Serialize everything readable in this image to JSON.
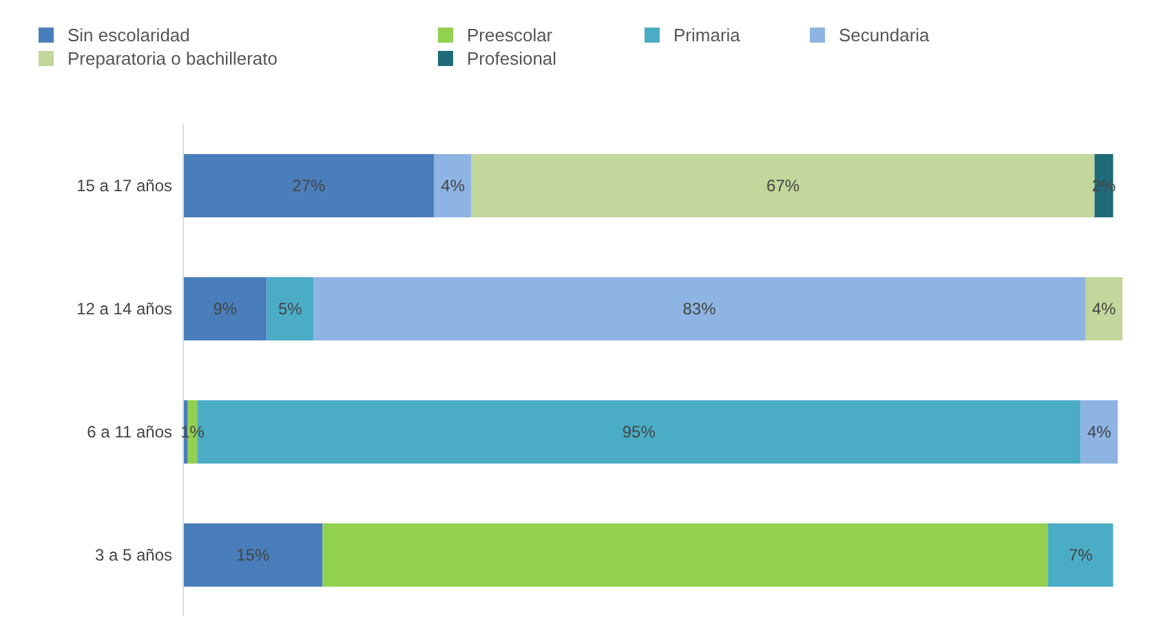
{
  "chart_data": {
    "type": "bar",
    "orientation": "horizontal",
    "stacked": true,
    "legend": "top",
    "grid": false,
    "categories": [
      "15 a 17 años",
      "12 a 14 años",
      "6 a 11 años",
      "3 a 5 años"
    ],
    "series": [
      {
        "name": "Sin escolaridad",
        "color": "#4a7ebb",
        "values": [
          27,
          9,
          0.5,
          15
        ],
        "value_labels": [
          "27%",
          "9%",
          null,
          "15%"
        ]
      },
      {
        "name": "Preescolar",
        "color": "#92d050",
        "values": [
          0,
          0,
          1,
          78
        ],
        "value_labels": [
          null,
          null,
          "1%",
          null
        ]
      },
      {
        "name": "Primaria",
        "color": "#4bacc6",
        "values": [
          0,
          5,
          95,
          7
        ],
        "value_labels": [
          null,
          "5%",
          "95%",
          "7%"
        ]
      },
      {
        "name": "Secundaria",
        "color": "#8eb4e3",
        "values": [
          4,
          83,
          4,
          0
        ],
        "value_labels": [
          "4%",
          "83%",
          "4%",
          null
        ]
      },
      {
        "name": "Preparatoria o bachillerato",
        "color": "#c3d69b",
        "values": [
          67,
          4,
          0,
          0
        ],
        "value_labels": [
          "67%",
          "4%",
          null,
          null
        ]
      },
      {
        "name": "Profesional",
        "color": "#1f6b7a",
        "values": [
          2,
          0,
          0,
          0
        ],
        "value_labels": [
          "2%",
          null,
          null,
          null
        ]
      }
    ]
  }
}
